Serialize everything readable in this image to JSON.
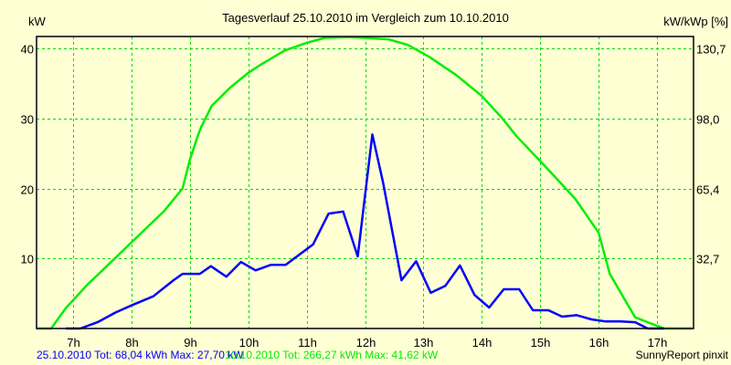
{
  "chart_data": {
    "type": "line",
    "title": "Tagesverlauf 25.10.2010 im Vergleich zum 10.10.2010",
    "ylabel": "kW",
    "ylabel_right": "kW/kWp [%]",
    "xlim": [
      6.375,
      17.625
    ],
    "ylim": [
      0,
      41.7
    ],
    "grid": true,
    "x_ticks": [
      7,
      8,
      9,
      10,
      11,
      12,
      13,
      14,
      15,
      16,
      17
    ],
    "x_tick_labels": [
      "7h",
      "8h",
      "9h",
      "10h",
      "11h",
      "12h",
      "13h",
      "14h",
      "15h",
      "16h",
      "17h"
    ],
    "y_ticks": [
      10,
      20,
      30,
      40
    ],
    "y_tick_labels": [
      "10",
      "20",
      "30",
      "40"
    ],
    "y_right_tick_labels": [
      "32,7",
      "65,4",
      "98,0",
      "130,7"
    ],
    "series": [
      {
        "name": "25.10.2010",
        "color": "#0000FF",
        "legend": "25.10.2010 Tot: 68,04 kWh Max: 27,70 kW",
        "x": [
          6.875,
          7.125,
          7.42,
          7.73,
          8.0,
          8.375,
          8.72,
          8.875,
          9.17,
          9.36,
          9.625,
          9.875,
          10.125,
          10.39,
          10.64,
          11.11,
          11.375,
          11.625,
          11.875,
          12.125,
          12.31,
          12.625,
          12.875,
          13.125,
          13.375,
          13.625,
          13.875,
          14.125,
          14.375,
          14.64,
          14.875,
          15.14,
          15.375,
          15.625,
          15.875,
          16.125,
          16.375,
          16.625,
          16.84,
          17.125
        ],
        "y": [
          0,
          0,
          0.9,
          2.3,
          3.3,
          4.6,
          6.9,
          7.8,
          7.8,
          8.9,
          7.4,
          9.5,
          8.3,
          9.1,
          9.1,
          12.0,
          16.4,
          16.7,
          10.3,
          27.7,
          20.8,
          6.9,
          9.6,
          5.1,
          6.1,
          9.0,
          4.8,
          3.0,
          5.6,
          5.6,
          2.6,
          2.6,
          1.7,
          1.9,
          1.3,
          1.0,
          1.0,
          0.9,
          0,
          0
        ]
      },
      {
        "name": "10.10.2010",
        "color": "#00EE00",
        "legend": "10.10.2010 Tot: 266,27 kWh Max: 41,62 kW",
        "x": [
          6.375,
          6.625,
          6.875,
          7.25,
          7.44,
          8.0,
          8.5625,
          8.875,
          9.0,
          9.14,
          9.19,
          9.375,
          9.69,
          10.0,
          10.18,
          10.625,
          11.0,
          11.31,
          11.7,
          12.0,
          12.4,
          12.73,
          13.1,
          13.56,
          14.0,
          14.34,
          14.6,
          15.125,
          15.6,
          16.0,
          16.19,
          16.625,
          16.87,
          17.125,
          17.6
        ],
        "y": [
          0,
          0,
          2.9,
          6.3,
          7.8,
          12.3,
          16.8,
          20.0,
          24.1,
          27.6,
          28.7,
          31.8,
          34.4,
          36.5,
          37.5,
          39.7,
          40.8,
          41.5,
          41.62,
          41.5,
          41.3,
          40.5,
          38.8,
          36.2,
          33.2,
          30.1,
          27.4,
          22.8,
          18.5,
          13.7,
          7.8,
          1.6,
          0.8,
          0,
          0
        ]
      }
    ],
    "footer_credit": "SunnyReport pinxit"
  }
}
